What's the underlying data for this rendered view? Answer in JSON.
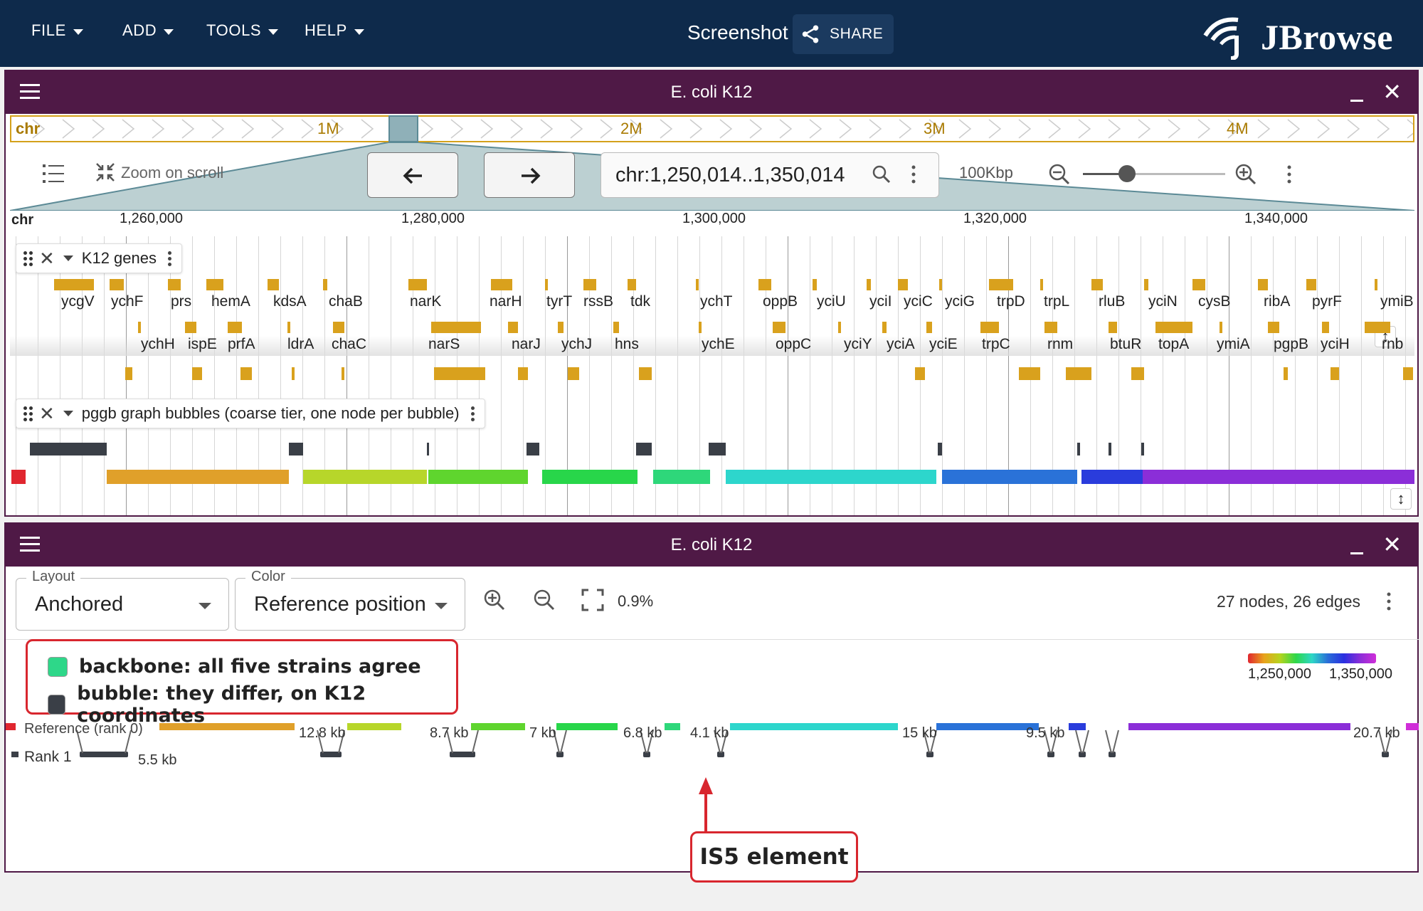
{
  "appbar": {
    "menus": [
      "FILE",
      "ADD",
      "TOOLS",
      "HELP"
    ],
    "session_name": "Screenshot",
    "share_label": "SHARE",
    "logo_text": "JBrowse"
  },
  "view1": {
    "title": "E. coli K12",
    "overview": {
      "chrom": "chr",
      "labels": [
        "1M",
        "2M",
        "3M",
        "4M"
      ]
    },
    "zoom_on_scroll": "Zoom on scroll",
    "locstring": "chr:1,250,014..1,350,014",
    "bp_per_screen": "100Kbp",
    "ruler": {
      "chrom": "chr",
      "ticks": [
        "1,260,000",
        "1,280,000",
        "1,300,000",
        "1,320,000",
        "1,340,000"
      ]
    },
    "gene_track": {
      "name": "K12 genes",
      "row1": [
        "ycgV",
        "ychF",
        "prs",
        "hemA",
        "kdsA",
        "chaB",
        "narK",
        "narH",
        "tyrT",
        "rssB",
        "tdk",
        "ychT",
        "oppB",
        "yciU",
        "yciI",
        "yciC",
        "yciG",
        "trpD",
        "trpL",
        "rluB",
        "yciN",
        "cysB",
        "ribA",
        "pyrF",
        "ymiB"
      ],
      "row2": [
        "ychH",
        "ispE",
        "prfA",
        "ldrA",
        "chaC",
        "narS",
        "narJ",
        "ychJ",
        "hns",
        "ychE",
        "oppC",
        "yciY",
        "yciA",
        "yciE",
        "trpC",
        "rnm",
        "btuR",
        "topA",
        "ymiA",
        "pgpB",
        "yciH",
        "rnb"
      ]
    },
    "bubble_track": {
      "name": "pggb graph bubbles (coarse tier, one node per bubble)"
    }
  },
  "view2": {
    "title": "E. coli K12",
    "layout": {
      "label": "Layout",
      "value": "Anchored"
    },
    "color": {
      "label": "Color",
      "value": "Reference position"
    },
    "zoom_pct": "0.9%",
    "stats": "27 nodes, 26 edges",
    "color_scale": {
      "min": "1,250,000",
      "max": "1,350,000"
    },
    "legend": [
      {
        "label": "backbone: all five strains agree",
        "color": "#2ed789"
      },
      {
        "label": "bubble: they differ, on K12 coordinates",
        "color": "#3a3f47"
      }
    ],
    "rank_labels": [
      "Reference (rank 0)",
      "Rank 1"
    ],
    "length_labels": [
      "12.8 kb",
      "8.7 kb",
      "7 kb",
      "6.8 kb",
      "4.1 kb",
      "15 kb",
      "9.5 kb",
      "20.7 kb",
      "5.5 kb"
    ],
    "callout": "IS5 element"
  },
  "colors": {
    "appbar": "#0e2a4b",
    "view_header": "#4f1946",
    "gene": "#d9a11d",
    "annotation_red": "#d8262e"
  }
}
